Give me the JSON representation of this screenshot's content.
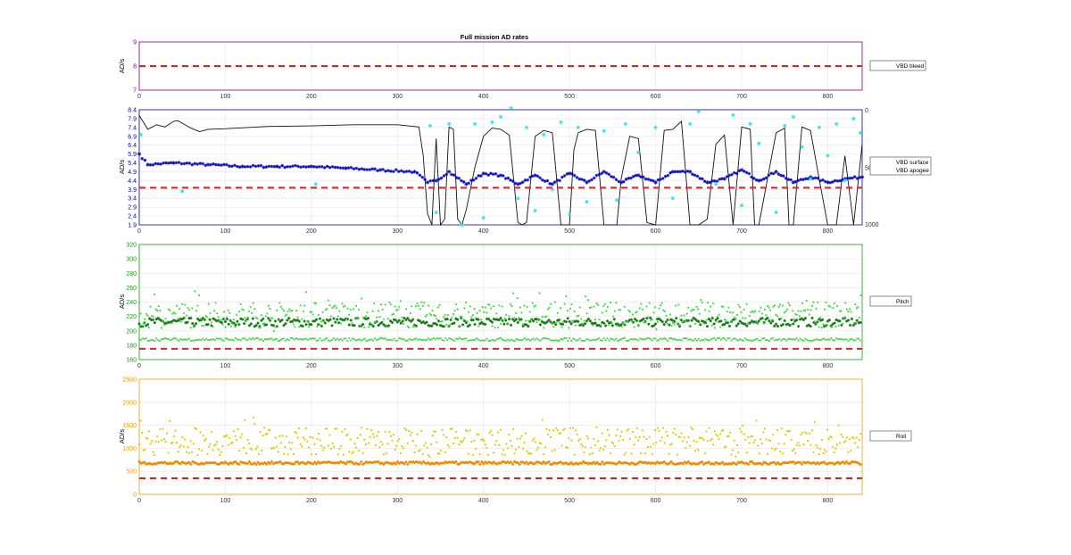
{
  "chart_data": [
    {
      "type": "scatter",
      "title": "Full mission AD rates",
      "ylabel": "AD/s",
      "axis_color": "#800080",
      "xlim": [
        0,
        840
      ],
      "ylim": [
        7,
        9
      ],
      "xticks": [
        0,
        100,
        200,
        300,
        400,
        500,
        600,
        700,
        800
      ],
      "yticks": [
        7,
        8,
        9
      ],
      "threshold": 8,
      "threshold_color": "#dd2222",
      "grid": true,
      "legend": {
        "placement": "outside-right",
        "items": [
          {
            "name": "VBD bleed",
            "color": "#a020a0"
          }
        ]
      },
      "series": []
    },
    {
      "type": "scatter",
      "ylabel": "AD/s",
      "axis_color": "#0000aa",
      "xlim": [
        0,
        840
      ],
      "ylim": [
        1.9,
        8.4
      ],
      "xticks": [
        0,
        100,
        200,
        300,
        400,
        500,
        600,
        700,
        800
      ],
      "yticks": [
        1.9,
        2.4,
        2.9,
        3.4,
        3.9,
        4.4,
        4.9,
        5.4,
        5.9,
        6.4,
        6.9,
        7.4,
        7.9,
        8.4
      ],
      "right_axis": {
        "ylim": [
          0,
          1000
        ],
        "reversed": true,
        "ticks": [
          "0",
          "50",
          "1000"
        ]
      },
      "threshold": 4.0,
      "threshold_color": "#dd2222",
      "grid": true,
      "legend": {
        "placement": "outside-right",
        "items": [
          {
            "name": "VBD surface",
            "color": "#33e0e8"
          },
          {
            "name": "VBD apogee",
            "color": "#1010c0"
          }
        ]
      },
      "series": [
        {
          "name": "VBD apogee",
          "color": "#1010c0",
          "marker": "star",
          "x": [
            0,
            10,
            40,
            80,
            120,
            160,
            200,
            240,
            280,
            320,
            335,
            345,
            360,
            380,
            400,
            420,
            440,
            460,
            480,
            500,
            520,
            540,
            560,
            580,
            600,
            620,
            640,
            660,
            680,
            700,
            720,
            740,
            760,
            780,
            800,
            820,
            840
          ],
          "y": [
            5.9,
            5.3,
            5.4,
            5.3,
            5.2,
            5.2,
            5.2,
            5.1,
            5.0,
            4.9,
            4.3,
            4.4,
            4.9,
            4.2,
            4.8,
            4.7,
            4.2,
            4.7,
            4.2,
            4.8,
            4.3,
            4.9,
            4.3,
            4.7,
            4.3,
            4.9,
            4.9,
            4.3,
            4.5,
            5.0,
            4.4,
            4.9,
            4.3,
            4.6,
            4.3,
            4.5,
            4.6
          ]
        },
        {
          "name": "VBD surface",
          "color": "#33e0e8",
          "marker": "star",
          "x": [
            2,
            50,
            205,
            338,
            345,
            360,
            375,
            390,
            400,
            410,
            420,
            432,
            440,
            450,
            460,
            470,
            480,
            490,
            500,
            510,
            520,
            540,
            555,
            565,
            580,
            600,
            620,
            640,
            650,
            670,
            690,
            700,
            710,
            720,
            740,
            750,
            760,
            770,
            780,
            790,
            800,
            810,
            820,
            830,
            838
          ],
          "y": [
            7.0,
            3.8,
            4.2,
            7.5,
            2.6,
            7.6,
            1.9,
            7.6,
            2.3,
            7.7,
            8.0,
            8.5,
            3.4,
            7.4,
            2.7,
            7.0,
            3.9,
            7.7,
            2.5,
            7.4,
            3.2,
            7.2,
            3.3,
            7.6,
            6.0,
            7.4,
            3.4,
            7.6,
            8.3,
            4.2,
            8.1,
            3.0,
            7.6,
            6.5,
            2.6,
            7.5,
            8.0,
            6.3,
            4.5,
            7.4,
            5.8,
            7.6,
            4.4,
            7.9,
            7.1
          ]
        },
        {
          "name": "",
          "color": "#111111",
          "marker": "line",
          "axis": "right",
          "x": [
            0,
            10,
            20,
            30,
            40,
            45,
            60,
            70,
            80,
            100,
            150,
            200,
            250,
            300,
            325,
            330,
            335,
            340,
            345,
            350,
            355,
            360,
            365,
            370,
            375,
            380,
            390,
            400,
            410,
            420,
            430,
            440,
            445,
            450,
            460,
            470,
            480,
            490,
            500,
            505,
            510,
            520,
            530,
            540,
            550,
            555,
            560,
            570,
            580,
            590,
            600,
            610,
            620,
            630,
            640,
            650,
            660,
            670,
            680,
            690,
            700,
            710,
            715,
            720,
            730,
            740,
            750,
            755,
            760,
            770,
            780,
            790,
            800,
            810,
            820,
            830,
            840
          ],
          "y": [
            50,
            170,
            130,
            150,
            100,
            95,
            160,
            190,
            170,
            165,
            145,
            140,
            130,
            130,
            150,
            400,
            900,
            1000,
            250,
            1000,
            950,
            150,
            170,
            950,
            1000,
            870,
            500,
            230,
            160,
            170,
            220,
            980,
            1000,
            980,
            230,
            180,
            200,
            1000,
            1000,
            350,
            200,
            170,
            180,
            1000,
            1000,
            1000,
            600,
            230,
            250,
            980,
            1000,
            180,
            170,
            100,
            1000,
            1000,
            950,
            300,
            220,
            1000,
            150,
            170,
            1000,
            1000,
            600,
            200,
            160,
            1000,
            1000,
            150,
            180,
            600,
            1000,
            1000,
            400,
            1000,
            300
          ]
        }
      ]
    },
    {
      "type": "scatter",
      "ylabel": "AD/s",
      "axis_color": "#1a9a1a",
      "xlim": [
        0,
        840
      ],
      "ylim": [
        160,
        320
      ],
      "xticks": [
        0,
        100,
        200,
        300,
        400,
        500,
        600,
        700,
        800
      ],
      "yticks": [
        160,
        180,
        200,
        220,
        240,
        260,
        280,
        300,
        320
      ],
      "threshold": 175,
      "threshold_color": "#dd2222",
      "grid": true,
      "legend": {
        "placement": "outside-right",
        "items": [
          {
            "name": "Pitch",
            "color": "#1a7a1a"
          }
        ]
      },
      "series": [
        {
          "name": "Pitch",
          "color": "#1a7a1a",
          "marker": "star",
          "cloud": "band",
          "center": 212,
          "spread": 6
        },
        {
          "name": "",
          "color": "#44dd44",
          "marker": "dot",
          "cloud": "scatter",
          "center": 222,
          "spread": 18
        },
        {
          "name": "",
          "color": "#44dd44",
          "marker": "dot",
          "cloud": "band",
          "center": 188,
          "spread": 2
        }
      ]
    },
    {
      "type": "scatter",
      "ylabel": "AD/s",
      "axis_color": "#f0a000",
      "xlim": [
        0,
        840
      ],
      "ylim": [
        0,
        2500
      ],
      "xticks": [
        0,
        100,
        200,
        300,
        400,
        500,
        600,
        700,
        800
      ],
      "yticks": [
        0,
        500,
        1000,
        1500,
        2000,
        2500
      ],
      "threshold": 350,
      "threshold_color": "#dd2222",
      "grid": true,
      "legend": {
        "placement": "outside-right",
        "items": [
          {
            "name": "Roll",
            "color": "#f08a00"
          }
        ]
      },
      "series": [
        {
          "name": "Roll",
          "color": "#f08a00",
          "marker": "star",
          "cloud": "band",
          "center": 680,
          "spread": 30
        },
        {
          "name": "",
          "color": "#e6c800",
          "marker": "dot",
          "cloud": "scatter",
          "center": 1150,
          "spread": 300
        }
      ]
    }
  ]
}
